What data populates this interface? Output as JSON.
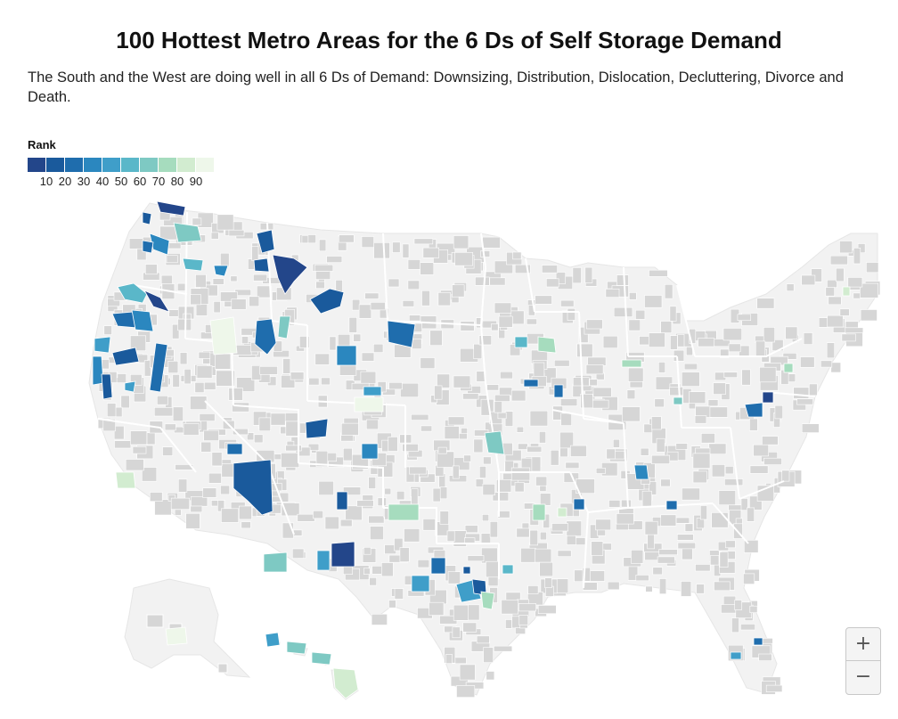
{
  "title": "100 Hottest Metro Areas for the 6 Ds of Self Storage Demand",
  "subtitle": "The South and the West are doing well in all 6 Ds of Demand: Downsizing, Distribution, Dislocation, Decluttering, Divorce and Death.",
  "legend": {
    "title": "Rank",
    "colors": [
      "#23468a",
      "#1a5a9c",
      "#1f6dad",
      "#2b87bf",
      "#3f9ec9",
      "#5ab7c9",
      "#7ec9c3",
      "#a6dcbe",
      "#d2ecd0",
      "#eef7ea"
    ],
    "ticks": [
      "10",
      "20",
      "30",
      "40",
      "50",
      "60",
      "70",
      "80",
      "90"
    ]
  },
  "map": {
    "land_color": "#f2f2f2",
    "county_color": "#d6d6d6",
    "boundary_color": "#ffffff"
  },
  "zoom": {
    "in_label": "+",
    "out_label": "−"
  }
}
